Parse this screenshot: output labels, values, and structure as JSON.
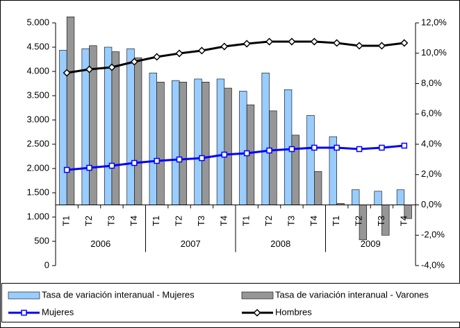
{
  "chart_data": {
    "type": "bar-line",
    "categories": [
      "T1",
      "T2",
      "T3",
      "T4",
      "T1",
      "T2",
      "T3",
      "T4",
      "T1",
      "T2",
      "T3",
      "T4",
      "T1",
      "T2",
      "T3",
      "T4"
    ],
    "groups": [
      "2006",
      "2007",
      "2008",
      "2009"
    ],
    "series": [
      {
        "name": "Tasa de variación interanual - Mujeres",
        "kind": "bar",
        "axis": "y2",
        "color": "#99ccff",
        "values": [
          10.2,
          10.3,
          10.4,
          10.3,
          8.7,
          8.2,
          8.3,
          8.3,
          7.5,
          8.7,
          7.6,
          5.9,
          4.5,
          1.0,
          0.9,
          1.0
        ]
      },
      {
        "name": "Tasa de variación interanual - Varones",
        "kind": "bar",
        "axis": "y2",
        "color": "#969696",
        "values": [
          12.4,
          10.5,
          10.1,
          9.7,
          8.1,
          8.1,
          8.1,
          7.7,
          6.6,
          6.2,
          4.6,
          2.2,
          0.1,
          -2.3,
          -2.0,
          -0.9
        ]
      },
      {
        "name": "Mujeres",
        "kind": "line",
        "color": "#0000ff",
        "marker": "square",
        "values": [
          1971,
          2014,
          2057,
          2114,
          2157,
          2186,
          2214,
          2286,
          2314,
          2371,
          2400,
          2429,
          2429,
          2400,
          2429,
          2471
        ]
      },
      {
        "name": "Hombres",
        "kind": "line",
        "color": "#000000",
        "marker": "diamond",
        "values": [
          3971,
          4043,
          4086,
          4200,
          4300,
          4371,
          4429,
          4514,
          4571,
          4614,
          4614,
          4614,
          4586,
          4529,
          4529,
          4586
        ]
      }
    ],
    "ylim": [
      0,
      5000
    ],
    "yticks": [
      {
        "value": 0,
        "label": "0"
      },
      {
        "value": 500,
        "label": "500"
      },
      {
        "value": 1000,
        "label": "1.000"
      },
      {
        "value": 1500,
        "label": "1.500"
      },
      {
        "value": 2000,
        "label": "2.000"
      },
      {
        "value": 2500,
        "label": "2.500"
      },
      {
        "value": 3000,
        "label": "3.000"
      },
      {
        "value": 3500,
        "label": "3.500"
      },
      {
        "value": 4000,
        "label": "4.000"
      },
      {
        "value": 4500,
        "label": "4.500"
      },
      {
        "value": 5000,
        "label": "5.000"
      }
    ],
    "y2lim": [
      -4,
      12
    ],
    "y2ticks": [
      {
        "value": -4,
        "label": "-4,0%"
      },
      {
        "value": -2,
        "label": "-2,0%"
      },
      {
        "value": 0,
        "label": "0,0%"
      },
      {
        "value": 2,
        "label": "2,0%"
      },
      {
        "value": 4,
        "label": "4,0%"
      },
      {
        "value": 6,
        "label": "6,0%"
      },
      {
        "value": 8,
        "label": "8,0%"
      },
      {
        "value": 10,
        "label": "10,0%"
      },
      {
        "value": 12,
        "label": "12,0%"
      }
    ]
  }
}
